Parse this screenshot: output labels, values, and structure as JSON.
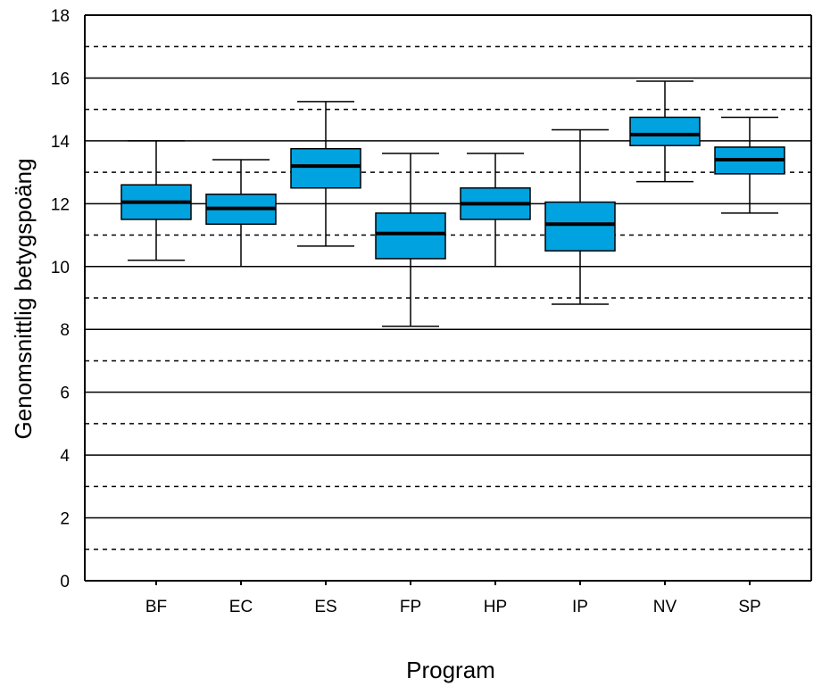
{
  "chart_data": {
    "type": "box",
    "xlabel": "Program",
    "ylabel": "Genomsnittlig betygspoäng",
    "ylim": [
      0,
      18
    ],
    "yticks": [
      0,
      2,
      4,
      6,
      8,
      10,
      12,
      14,
      16,
      18
    ],
    "minor_gridlines": [
      1,
      3,
      5,
      7,
      9,
      11,
      13,
      15,
      17
    ],
    "grid": true,
    "box_color": "#00a3e0",
    "categories": [
      "BF",
      "EC",
      "ES",
      "FP",
      "HP",
      "IP",
      "NV",
      "SP"
    ],
    "boxes": [
      {
        "category": "BF",
        "min": 10.2,
        "q1": 11.5,
        "median": 12.05,
        "q3": 12.6,
        "max": 14.0
      },
      {
        "category": "EC",
        "min": 10.0,
        "q1": 11.35,
        "median": 11.85,
        "q3": 12.3,
        "max": 13.4
      },
      {
        "category": "ES",
        "min": 10.65,
        "q1": 12.5,
        "median": 13.2,
        "q3": 13.75,
        "max": 15.25
      },
      {
        "category": "FP",
        "min": 8.1,
        "q1": 10.25,
        "median": 11.05,
        "q3": 11.7,
        "max": 13.6
      },
      {
        "category": "HP",
        "min": 10.0,
        "q1": 11.5,
        "median": 12.0,
        "q3": 12.5,
        "max": 13.6
      },
      {
        "category": "IP",
        "min": 8.8,
        "q1": 10.5,
        "median": 11.35,
        "q3": 12.05,
        "max": 14.35
      },
      {
        "category": "NV",
        "min": 12.7,
        "q1": 13.85,
        "median": 14.2,
        "q3": 14.75,
        "max": 15.9
      },
      {
        "category": "SP",
        "min": 11.7,
        "q1": 12.95,
        "median": 13.4,
        "q3": 13.8,
        "max": 14.75
      }
    ]
  }
}
